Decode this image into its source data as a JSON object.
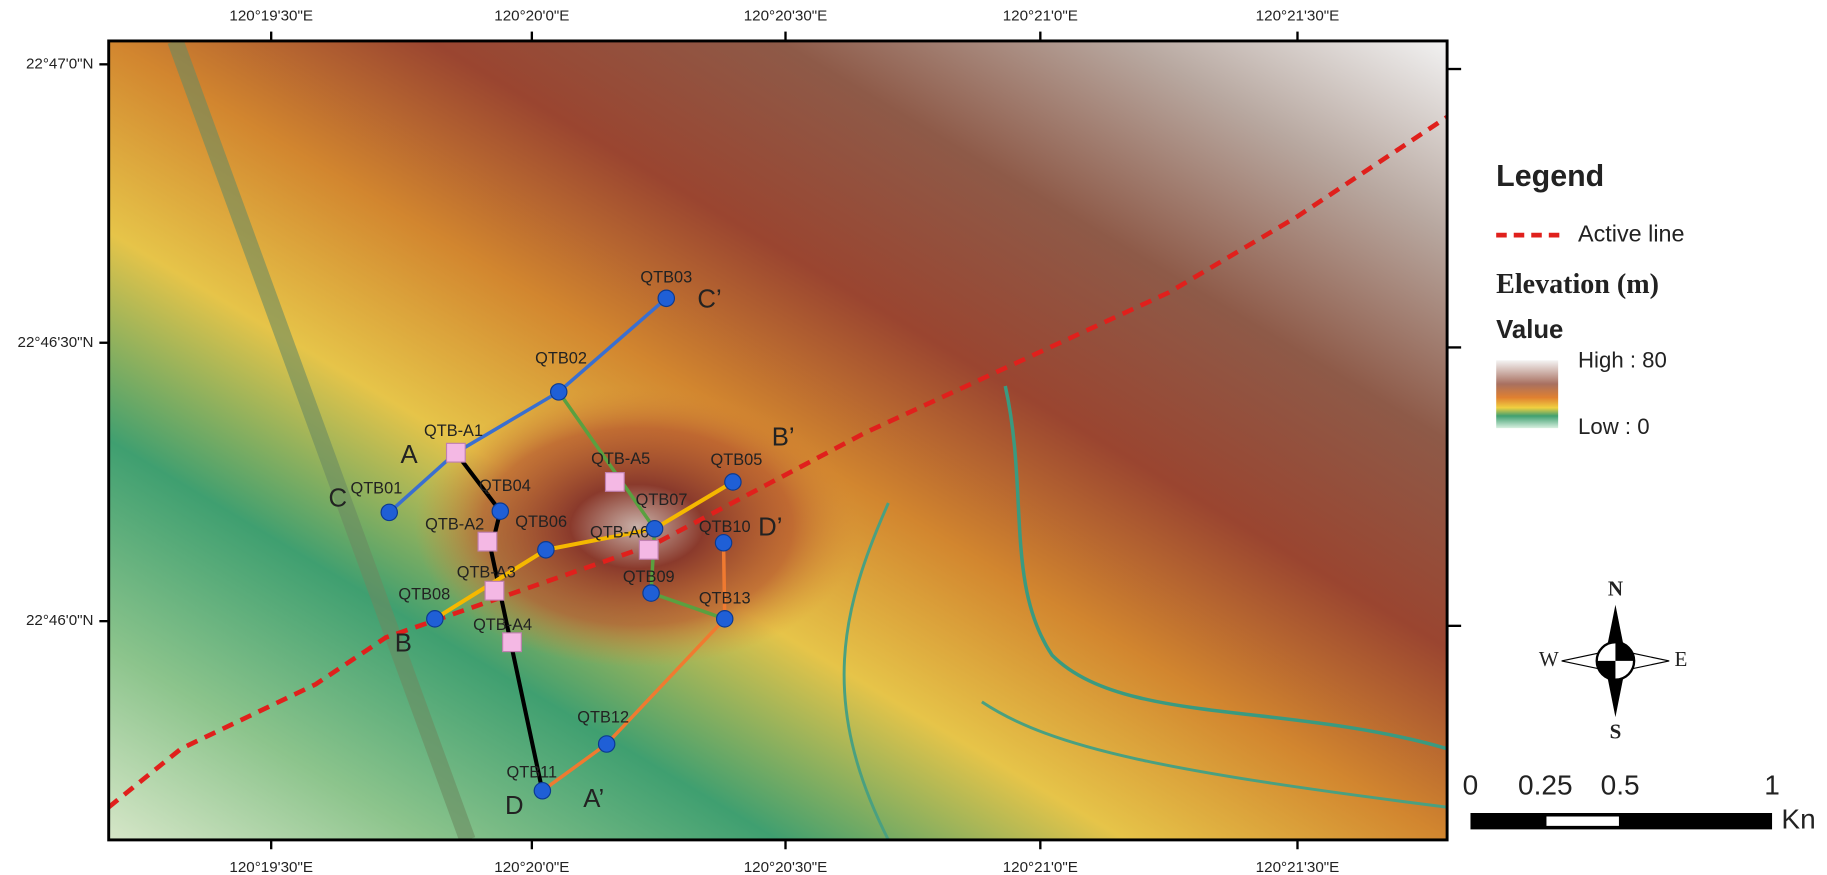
{
  "map": {
    "x_labels": [
      "120°19'30\"E",
      "120°20'0\"E",
      "120°20'30\"E",
      "120°21'0\"E",
      "120°21'30\"E"
    ],
    "y_labels": [
      "22°47'0\"N",
      "22°46'30\"N",
      "22°46'0\"N"
    ],
    "boreholes": [
      "QTB01",
      "QTB02",
      "QTB03",
      "QTB04",
      "QTB05",
      "QTB06",
      "QTB07",
      "QTB08",
      "QTB09",
      "QTB10",
      "QTB11",
      "QTB12",
      "QTB13"
    ],
    "samples": [
      "QTB-A1",
      "QTB-A2",
      "QTB-A3",
      "QTB-A4",
      "QTB-A5",
      "QTB-A6"
    ],
    "section_labels": [
      "A",
      "A’",
      "B",
      "B’",
      "C",
      "C’",
      "D",
      "D’"
    ]
  },
  "legend": {
    "title": "Legend",
    "active_line": "Active line",
    "elevation": "Elevation (m)",
    "value": "Value",
    "high": "High : 80",
    "low": "Low : 0"
  },
  "compass": {
    "north": "N",
    "south": "S",
    "east": "E",
    "west": "W"
  },
  "scale_bar": {
    "labels": [
      "0",
      "0.25",
      "0.5",
      "1"
    ],
    "unit": "Kn"
  }
}
